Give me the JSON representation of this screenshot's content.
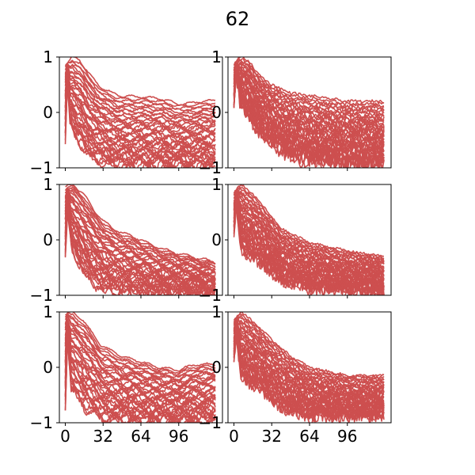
{
  "figure": {
    "title": "62"
  },
  "chart_data": {
    "type": "line",
    "title": "62",
    "series_color": "#cd4f4f",
    "layout": {
      "rows": 3,
      "cols": 2,
      "sharex": true,
      "sharey": true
    },
    "xlim": [
      -5,
      133
    ],
    "ylim": [
      -1,
      1
    ],
    "xticks": [
      0,
      32,
      64,
      96
    ],
    "xtick_labels": [
      "0",
      "32",
      "64",
      "96"
    ],
    "yticks": [
      -1,
      0,
      1
    ],
    "ytick_labels": [
      "−1",
      "0",
      "1"
    ],
    "x_range": [
      0,
      127
    ],
    "curves_per_panel": 40,
    "panels": [
      {
        "name": "row1-col1",
        "row": 0,
        "col": 0,
        "envelope_upper": [
          [
            0,
            0.85
          ],
          [
            6,
            1.0
          ],
          [
            12,
            0.95
          ],
          [
            20,
            0.7
          ],
          [
            30,
            0.45
          ],
          [
            45,
            0.3
          ],
          [
            64,
            0.28
          ],
          [
            80,
            0.25
          ],
          [
            96,
            0.15
          ],
          [
            110,
            0.18
          ],
          [
            127,
            0.22
          ]
        ],
        "envelope_lower": [
          [
            0,
            -0.5
          ],
          [
            2,
            0.6
          ],
          [
            4,
            -0.2
          ],
          [
            10,
            -0.5
          ],
          [
            20,
            -0.8
          ],
          [
            30,
            -0.9
          ],
          [
            45,
            -0.98
          ],
          [
            64,
            -1.0
          ],
          [
            96,
            -1.0
          ],
          [
            127,
            -1.0
          ]
        ],
        "oscillation": 0.06,
        "jaggedness": 0.05
      },
      {
        "name": "row1-col2",
        "row": 0,
        "col": 1,
        "envelope_upper": [
          [
            0,
            0.85
          ],
          [
            5,
            1.0
          ],
          [
            12,
            0.95
          ],
          [
            20,
            0.7
          ],
          [
            32,
            0.5
          ],
          [
            48,
            0.35
          ],
          [
            64,
            0.3
          ],
          [
            80,
            0.25
          ],
          [
            96,
            0.2
          ],
          [
            127,
            0.2
          ]
        ],
        "envelope_lower": [
          [
            0,
            0.1
          ],
          [
            2,
            0.7
          ],
          [
            5,
            0.2
          ],
          [
            15,
            -0.2
          ],
          [
            32,
            -0.6
          ],
          [
            48,
            -0.8
          ],
          [
            64,
            -0.9
          ],
          [
            96,
            -0.95
          ],
          [
            127,
            -0.95
          ]
        ],
        "oscillation": 0.02,
        "jaggedness": 0.12
      },
      {
        "name": "row2-col1",
        "row": 1,
        "col": 0,
        "envelope_upper": [
          [
            0,
            0.95
          ],
          [
            6,
            1.0
          ],
          [
            15,
            0.85
          ],
          [
            25,
            0.5
          ],
          [
            40,
            0.2
          ],
          [
            64,
            0.0
          ],
          [
            80,
            -0.15
          ],
          [
            96,
            -0.25
          ],
          [
            127,
            -0.4
          ]
        ],
        "envelope_lower": [
          [
            0,
            -0.3
          ],
          [
            2,
            0.6
          ],
          [
            5,
            -0.1
          ],
          [
            15,
            -0.6
          ],
          [
            32,
            -0.9
          ],
          [
            64,
            -1.0
          ],
          [
            127,
            -1.0
          ]
        ],
        "oscillation": 0.07,
        "jaggedness": 0.05
      },
      {
        "name": "row2-col2",
        "row": 1,
        "col": 1,
        "envelope_upper": [
          [
            0,
            0.85
          ],
          [
            6,
            1.0
          ],
          [
            15,
            0.85
          ],
          [
            25,
            0.6
          ],
          [
            40,
            0.2
          ],
          [
            64,
            -0.05
          ],
          [
            96,
            -0.2
          ],
          [
            127,
            -0.3
          ]
        ],
        "envelope_lower": [
          [
            0,
            0.1
          ],
          [
            2,
            0.6
          ],
          [
            6,
            -0.2
          ],
          [
            20,
            -0.4
          ],
          [
            40,
            -0.75
          ],
          [
            64,
            -0.9
          ],
          [
            127,
            -0.95
          ]
        ],
        "oscillation": 0.02,
        "jaggedness": 0.1
      },
      {
        "name": "row3-col1",
        "row": 2,
        "col": 0,
        "envelope_upper": [
          [
            0,
            0.95
          ],
          [
            6,
            1.0
          ],
          [
            15,
            0.85
          ],
          [
            30,
            0.4
          ],
          [
            48,
            0.2
          ],
          [
            64,
            0.1
          ],
          [
            80,
            0.0
          ],
          [
            96,
            -0.05
          ],
          [
            110,
            0.05
          ],
          [
            127,
            0.05
          ]
        ],
        "envelope_lower": [
          [
            0,
            -0.7
          ],
          [
            2,
            0.6
          ],
          [
            5,
            -0.4
          ],
          [
            15,
            -0.7
          ],
          [
            32,
            -0.95
          ],
          [
            64,
            -1.0
          ],
          [
            127,
            -1.0
          ]
        ],
        "oscillation": 0.07,
        "jaggedness": 0.05
      },
      {
        "name": "row3-col2",
        "row": 2,
        "col": 1,
        "envelope_upper": [
          [
            0,
            0.85
          ],
          [
            6,
            1.0
          ],
          [
            15,
            0.85
          ],
          [
            32,
            0.5
          ],
          [
            48,
            0.2
          ],
          [
            64,
            0.0
          ],
          [
            96,
            -0.15
          ],
          [
            127,
            -0.15
          ]
        ],
        "envelope_lower": [
          [
            0,
            0.1
          ],
          [
            2,
            0.6
          ],
          [
            6,
            -0.2
          ],
          [
            20,
            -0.4
          ],
          [
            40,
            -0.75
          ],
          [
            64,
            -0.9
          ],
          [
            127,
            -0.9
          ]
        ],
        "oscillation": 0.02,
        "jaggedness": 0.1
      }
    ]
  }
}
